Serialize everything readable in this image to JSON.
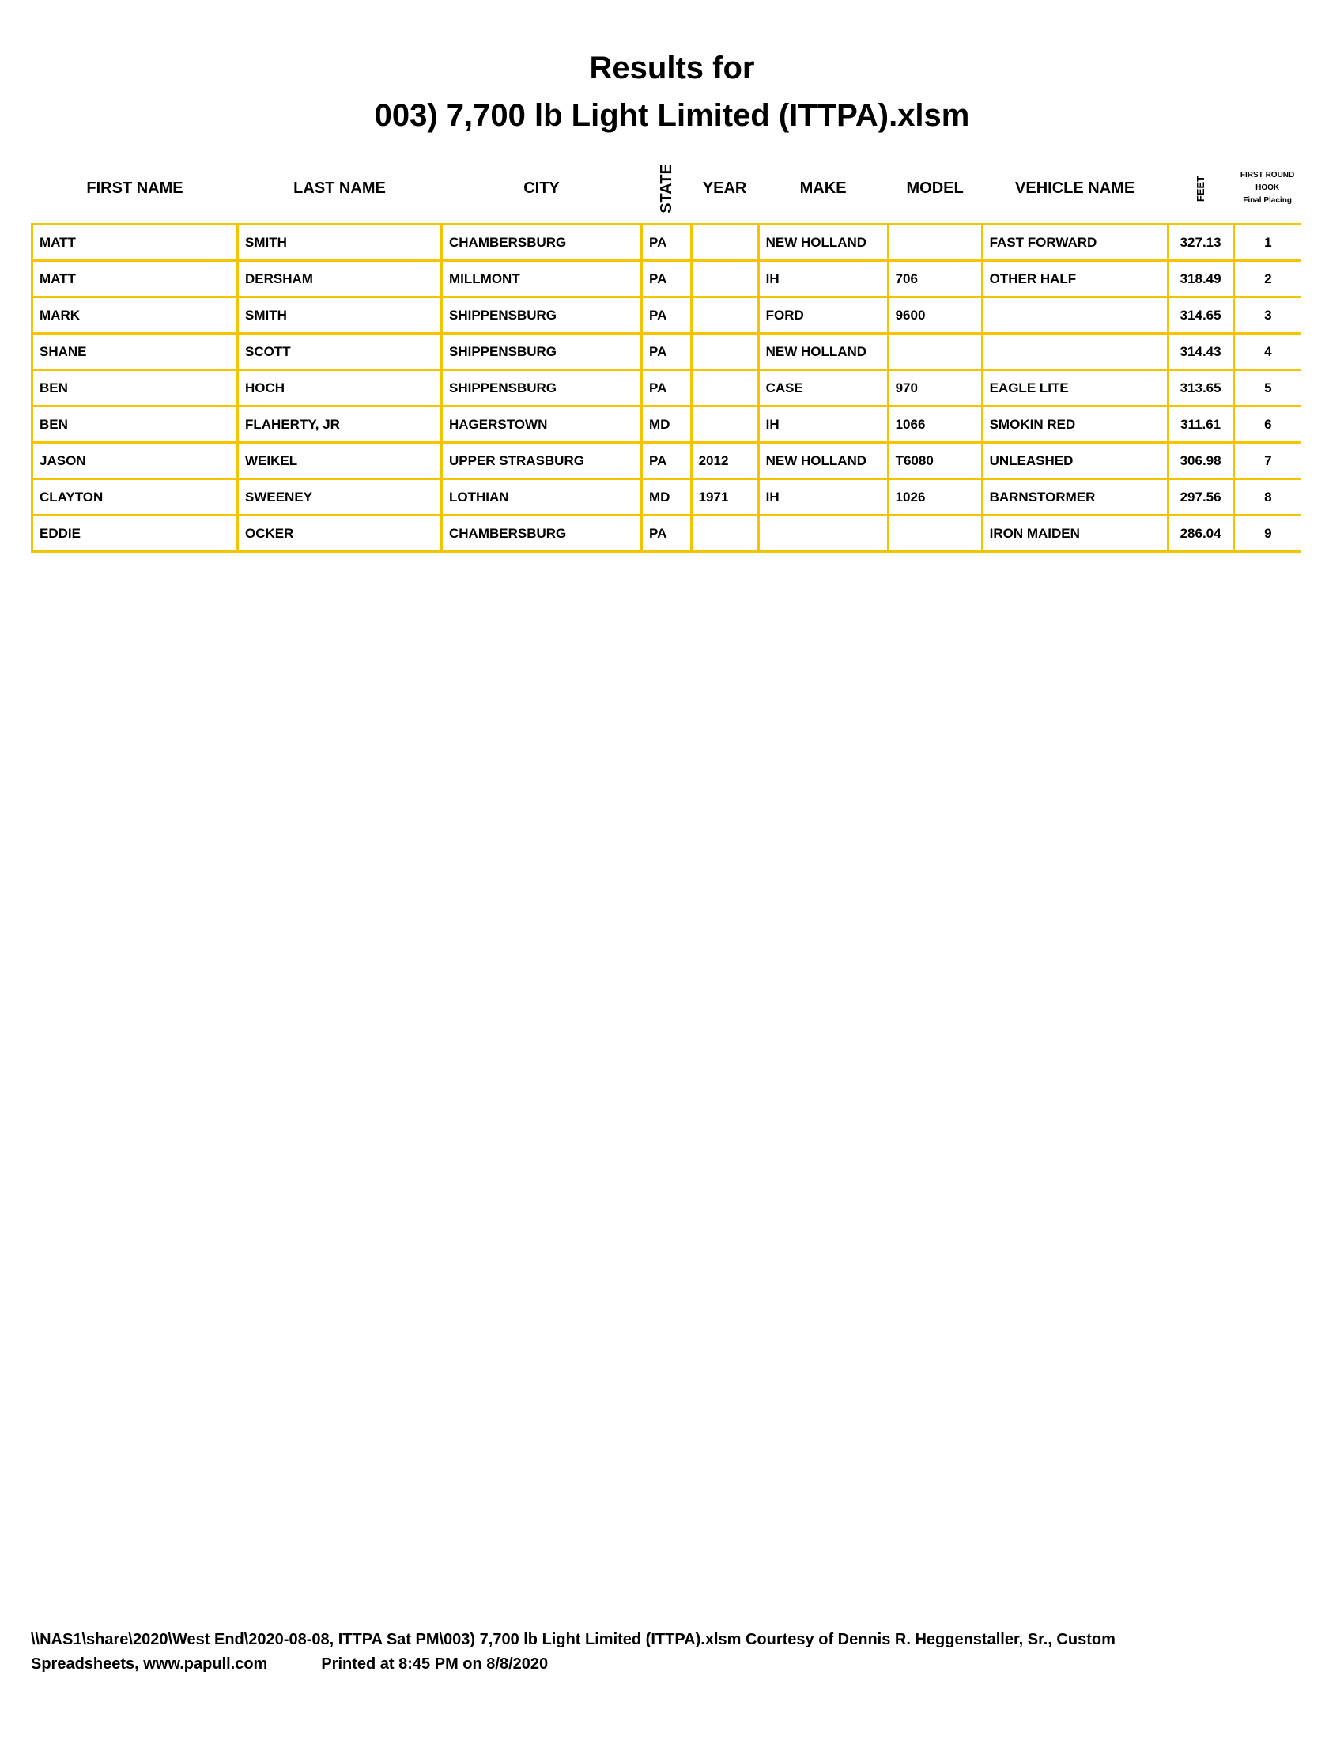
{
  "title_line1": "Results for",
  "title_line2": "003) 7,700 lb Light Limited (ITTPA).xlsm",
  "table": {
    "headers": [
      "FIRST NAME",
      "LAST NAME",
      "CITY",
      "STATE",
      "YEAR",
      "MAKE",
      "MODEL",
      "VEHICLE NAME",
      "FEET"
    ],
    "placing_header": {
      "line1": "FIRST ROUND",
      "line2": "HOOK",
      "line3": "Final Placing"
    },
    "rows": [
      [
        "MATT",
        "SMITH",
        "CHAMBERSBURG",
        "PA",
        "",
        "NEW HOLLAND",
        "",
        "FAST FORWARD",
        "327.13",
        "1"
      ],
      [
        "MATT",
        "DERSHAM",
        "MILLMONT",
        "PA",
        "",
        "IH",
        "706",
        "OTHER HALF",
        "318.49",
        "2"
      ],
      [
        "MARK",
        "SMITH",
        "SHIPPENSBURG",
        "PA",
        "",
        "FORD",
        "9600",
        "",
        "314.65",
        "3"
      ],
      [
        "SHANE",
        "SCOTT",
        "SHIPPENSBURG",
        "PA",
        "",
        "NEW HOLLAND",
        "",
        "",
        "314.43",
        "4"
      ],
      [
        "BEN",
        "HOCH",
        "SHIPPENSBURG",
        "PA",
        "",
        "CASE",
        "970",
        "EAGLE LITE",
        "313.65",
        "5"
      ],
      [
        "BEN",
        "FLAHERTY, JR",
        "HAGERSTOWN",
        "MD",
        "",
        "IH",
        "1066",
        "SMOKIN RED",
        "311.61",
        "6"
      ],
      [
        "JASON",
        "WEIKEL",
        "UPPER STRASBURG",
        "PA",
        "2012",
        "NEW HOLLAND",
        "T6080",
        "UNLEASHED",
        "306.98",
        "7"
      ],
      [
        "CLAYTON",
        "SWEENEY",
        "LOTHIAN",
        "MD",
        "1971",
        "IH",
        "1026",
        "BARNSTORMER",
        "297.56",
        "8"
      ],
      [
        "EDDIE",
        "OCKER",
        "CHAMBERSBURG",
        "PA",
        "",
        "",
        "",
        "IRON MAIDEN",
        "286.04",
        "9"
      ]
    ]
  },
  "footer": {
    "line1": "\\\\NAS1\\share\\2020\\West End\\2020-08-08, ITTPA Sat PM\\003) 7,700 lb Light Limited (ITTPA).xlsm  Courtesy of Dennis R. Heggenstaller, Sr., Custom",
    "line2_a": "Spreadsheets, www.papull.com",
    "line2_b": "Printed at 8:45 PM on 8/8/2020"
  },
  "colors": {
    "grid": "#f5c400"
  }
}
